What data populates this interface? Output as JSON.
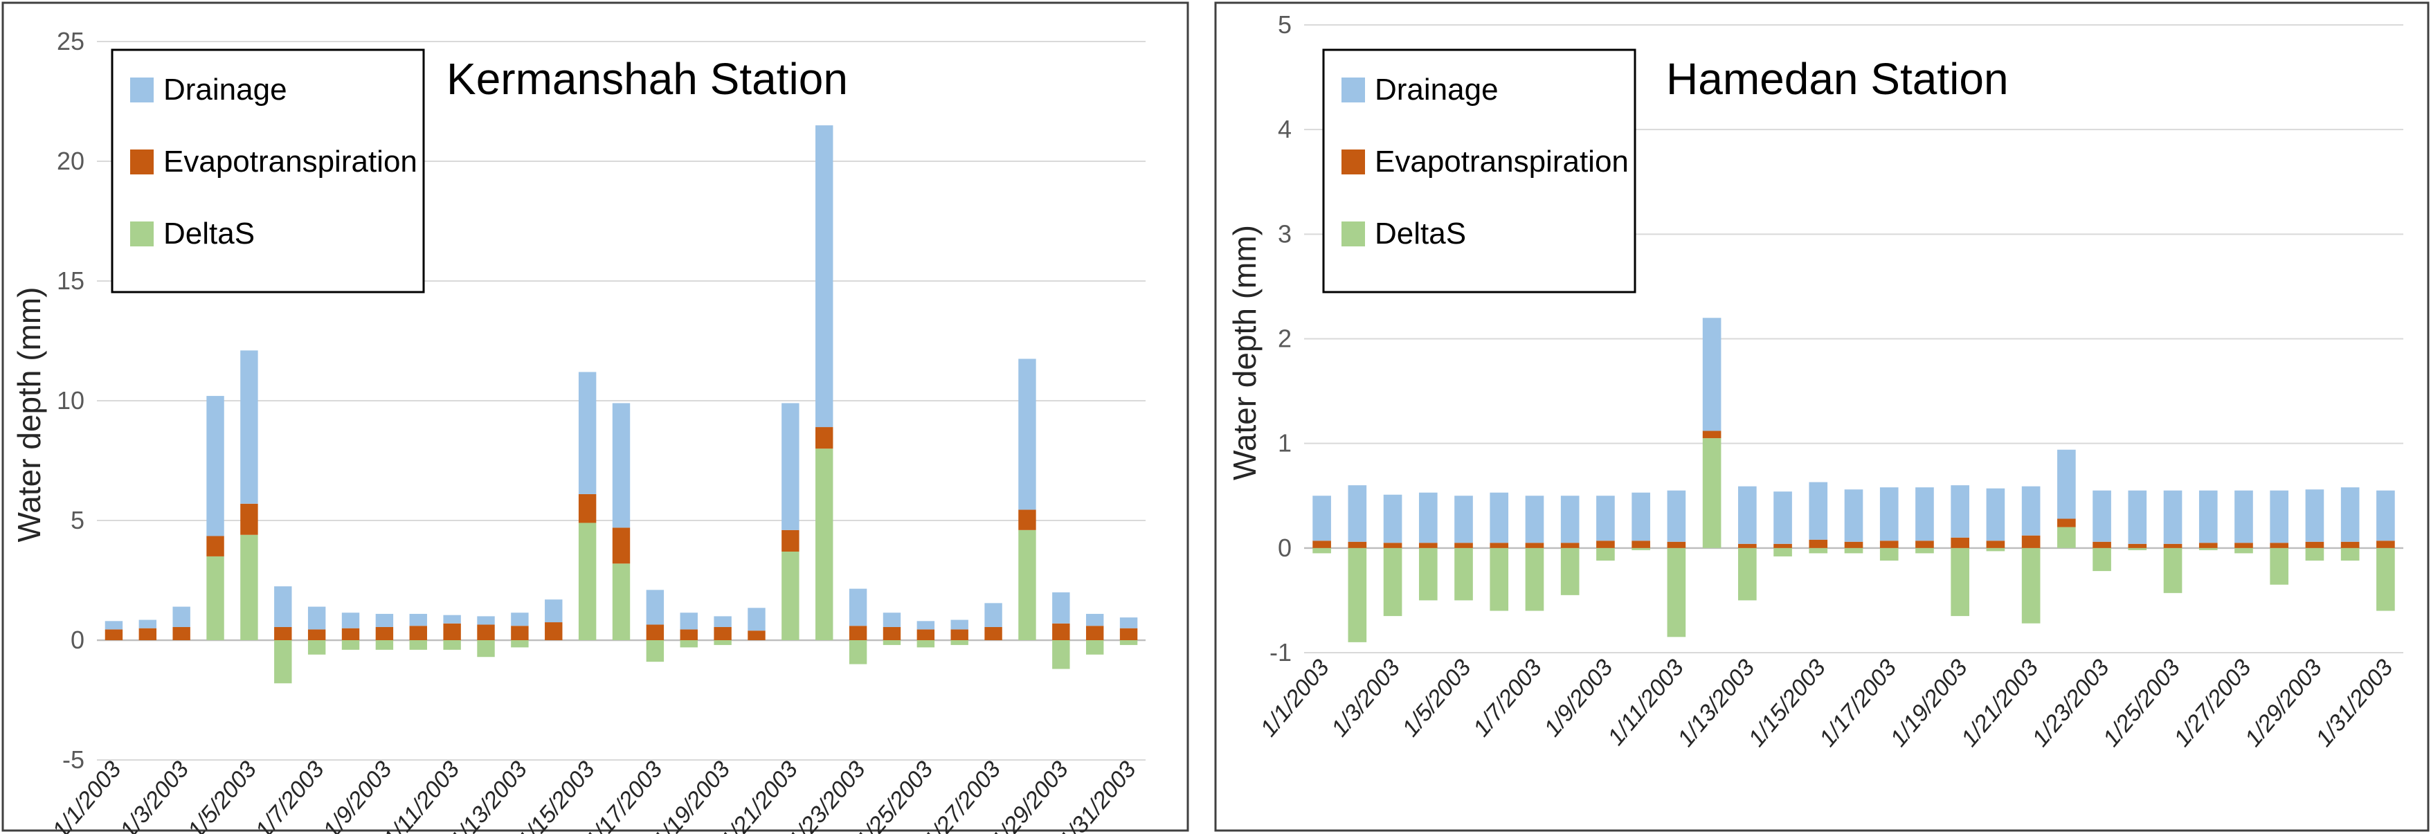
{
  "colors": {
    "drainage": "#9DC3E6",
    "evapotranspiration": "#C55A11",
    "deltas": "#A9D18E"
  },
  "legend": {
    "drainage": "Drainage",
    "evapotranspiration": "Evapotranspiration",
    "deltas": "DeltaS"
  },
  "chart_data": [
    {
      "type": "bar",
      "stacked": true,
      "title": "Kermanshah Station",
      "ylabel": "Water depth  (mm)",
      "xlabel": "",
      "ylim": [
        -5,
        25
      ],
      "yticks": [
        -5,
        0,
        5,
        10,
        15,
        20,
        25
      ],
      "legend_position": "top-left",
      "categories": [
        "1/1/2003",
        "1/2/2003",
        "1/3/2003",
        "1/4/2003",
        "1/5/2003",
        "1/6/2003",
        "1/7/2003",
        "1/8/2003",
        "1/9/2003",
        "1/10/2003",
        "1/11/2003",
        "1/12/2003",
        "1/13/2003",
        "1/14/2003",
        "1/15/2003",
        "1/16/2003",
        "1/17/2003",
        "1/18/2003",
        "1/19/2003",
        "1/20/2003",
        "1/21/2003",
        "1/22/2003",
        "1/23/2003",
        "1/24/2003",
        "1/25/2003",
        "1/26/2003",
        "1/27/2003",
        "1/28/2003",
        "1/29/2003",
        "1/30/2003",
        "1/31/2003"
      ],
      "tick_labels": [
        "1/1/2003",
        "1/3/2003",
        "1/5/2003",
        "1/7/2003",
        "1/9/2003",
        "1/11/2003",
        "1/13/2003",
        "1/15/2003",
        "1/17/2003",
        "1/19/2003",
        "1/21/2003",
        "1/23/2003",
        "1/25/2003",
        "1/27/2003",
        "1/29/2003",
        "1/31/2003"
      ],
      "series": [
        {
          "name": "DeltaS",
          "values": [
            0,
            0,
            0,
            3.5,
            4.4,
            -1.8,
            -0.6,
            -0.4,
            -0.4,
            -0.4,
            -0.4,
            -0.7,
            -0.3,
            0,
            4.9,
            3.2,
            -0.9,
            -0.3,
            -0.2,
            0,
            3.7,
            8.0,
            -1.0,
            -0.2,
            -0.3,
            -0.2,
            0,
            4.6,
            -1.2,
            -0.6,
            -0.2
          ]
        },
        {
          "name": "Evapotranspiration",
          "values": [
            0.45,
            0.5,
            0.55,
            0.85,
            1.3,
            0.55,
            0.45,
            0.5,
            0.55,
            0.6,
            0.7,
            0.65,
            0.6,
            0.75,
            1.2,
            1.5,
            0.65,
            0.45,
            0.55,
            0.4,
            0.9,
            0.9,
            0.6,
            0.55,
            0.45,
            0.45,
            0.55,
            0.85,
            0.7,
            0.6,
            0.5
          ]
        },
        {
          "name": "Drainage",
          "values": [
            0.35,
            0.35,
            0.85,
            5.85,
            6.4,
            1.7,
            0.95,
            0.65,
            0.55,
            0.5,
            0.35,
            0.35,
            0.55,
            0.95,
            5.1,
            5.2,
            1.45,
            0.7,
            0.45,
            0.95,
            5.3,
            12.6,
            1.55,
            0.6,
            0.35,
            0.4,
            1.0,
            6.3,
            1.3,
            0.5,
            0.45
          ]
        }
      ]
    },
    {
      "type": "bar",
      "stacked": true,
      "title": "Hamedan Station",
      "ylabel": "Water depth  (mm)",
      "xlabel": "",
      "ylim": [
        -1,
        5
      ],
      "yticks": [
        -1,
        0,
        1,
        2,
        3,
        4,
        5
      ],
      "legend_position": "top-left",
      "categories": [
        "1/1/2003",
        "1/2/2003",
        "1/3/2003",
        "1/4/2003",
        "1/5/2003",
        "1/6/2003",
        "1/7/2003",
        "1/8/2003",
        "1/9/2003",
        "1/10/2003",
        "1/11/2003",
        "1/12/2003",
        "1/13/2003",
        "1/14/2003",
        "1/15/2003",
        "1/16/2003",
        "1/17/2003",
        "1/18/2003",
        "1/19/2003",
        "1/20/2003",
        "1/21/2003",
        "1/22/2003",
        "1/23/2003",
        "1/24/2003",
        "1/25/2003",
        "1/26/2003",
        "1/27/2003",
        "1/28/2003",
        "1/29/2003",
        "1/30/2003",
        "1/31/2003"
      ],
      "tick_labels": [
        "1/1/2003",
        "1/3/2003",
        "1/5/2003",
        "1/7/2003",
        "1/9/2003",
        "1/11/2003",
        "1/13/2003",
        "1/15/2003",
        "1/17/2003",
        "1/19/2003",
        "1/21/2003",
        "1/23/2003",
        "1/25/2003",
        "1/27/2003",
        "1/29/2003",
        "1/31/2003"
      ],
      "series": [
        {
          "name": "DeltaS",
          "values": [
            -0.05,
            -0.9,
            -0.65,
            -0.5,
            -0.5,
            -0.6,
            -0.6,
            -0.45,
            -0.12,
            -0.02,
            -0.85,
            1.05,
            -0.5,
            -0.08,
            -0.05,
            -0.05,
            -0.12,
            -0.05,
            -0.65,
            -0.03,
            -0.72,
            0.2,
            -0.22,
            -0.02,
            -0.43,
            -0.02,
            -0.05,
            -0.35,
            -0.12,
            -0.12,
            -0.6
          ]
        },
        {
          "name": "Evapotranspiration",
          "values": [
            0.07,
            0.06,
            0.05,
            0.05,
            0.05,
            0.05,
            0.05,
            0.05,
            0.07,
            0.07,
            0.06,
            0.07,
            0.04,
            0.04,
            0.08,
            0.06,
            0.07,
            0.07,
            0.1,
            0.07,
            0.12,
            0.08,
            0.06,
            0.04,
            0.04,
            0.05,
            0.05,
            0.05,
            0.06,
            0.06,
            0.07
          ]
        },
        {
          "name": "Drainage",
          "values": [
            0.43,
            0.54,
            0.46,
            0.48,
            0.45,
            0.48,
            0.45,
            0.45,
            0.43,
            0.46,
            0.49,
            1.08,
            0.55,
            0.5,
            0.55,
            0.5,
            0.51,
            0.51,
            0.5,
            0.5,
            0.47,
            0.66,
            0.49,
            0.51,
            0.51,
            0.5,
            0.5,
            0.5,
            0.5,
            0.52,
            0.48
          ]
        }
      ]
    }
  ]
}
